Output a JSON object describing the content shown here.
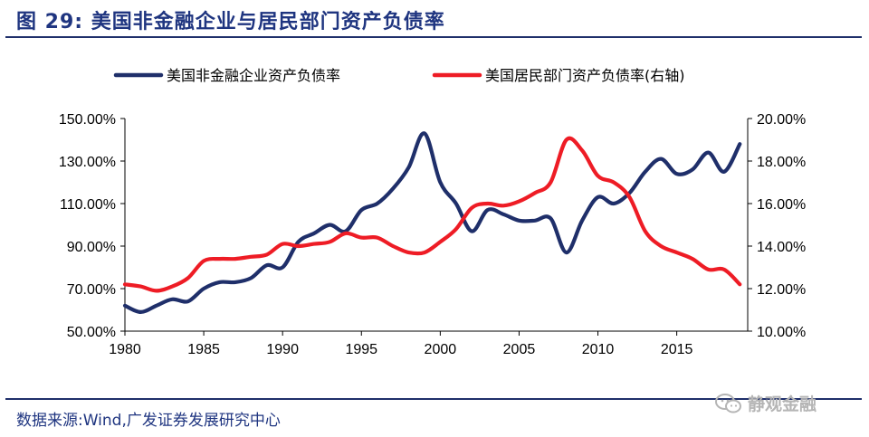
{
  "title": "图 29:  美国非金融企业与居民部门资产负债率",
  "source": "数据来源:Wind,广发证券发展研究中心",
  "watermark": {
    "text": "静观金融",
    "icon": "wechat-icon"
  },
  "colors": {
    "navy": "#1f2f6a",
    "red": "#ee1c25",
    "title": "#1f3580"
  },
  "chart_data": {
    "type": "line",
    "title": "美国非金融企业与居民部门资产负债率",
    "x_ticks": [
      "1980",
      "1985",
      "1990",
      "1995",
      "2000",
      "2005",
      "2010",
      "2015"
    ],
    "xlim": [
      1980,
      2019.5
    ],
    "y_left": {
      "ticks": [
        "150.00%",
        "130.00%",
        "110.00%",
        "90.00%",
        "70.00%",
        "50.00%"
      ],
      "range": [
        50,
        150
      ]
    },
    "y_right": {
      "ticks": [
        "20.00%",
        "18.00%",
        "16.00%",
        "14.00%",
        "12.00%",
        "10.00%"
      ],
      "range": [
        10,
        20
      ]
    },
    "legend_position": "top",
    "series": [
      {
        "name": "美国非金融企业资产负债率",
        "axis": "left",
        "color": "#1f2f6a",
        "x": [
          1980,
          1981,
          1982,
          1983,
          1984,
          1985,
          1986,
          1987,
          1988,
          1989,
          1990,
          1991,
          1992,
          1993,
          1994,
          1995,
          1996,
          1997,
          1998,
          1999,
          2000,
          2001,
          2002,
          2003,
          2004,
          2005,
          2006,
          2007,
          2008,
          2009,
          2010,
          2011,
          2012,
          2013,
          2014,
          2015,
          2016,
          2017,
          2018,
          2019
        ],
        "values": [
          62,
          59,
          62,
          65,
          64,
          70,
          73,
          73,
          75,
          81,
          80,
          92,
          96,
          100,
          97,
          107,
          110,
          117,
          127,
          143,
          120,
          110,
          97,
          107,
          105,
          102,
          102,
          103,
          87,
          102,
          113,
          110,
          115,
          125,
          131,
          124,
          126,
          134,
          125,
          138
        ]
      },
      {
        "name": "美国居民部门资产负债率(右轴)",
        "axis": "right",
        "color": "#ee1c25",
        "x": [
          1980,
          1981,
          1982,
          1983,
          1984,
          1985,
          1986,
          1987,
          1988,
          1989,
          1990,
          1991,
          1992,
          1993,
          1994,
          1995,
          1996,
          1997,
          1998,
          1999,
          2000,
          2001,
          2002,
          2003,
          2004,
          2005,
          2006,
          2007,
          2008,
          2009,
          2010,
          2011,
          2012,
          2013,
          2014,
          2015,
          2016,
          2017,
          2018,
          2019
        ],
        "values": [
          12.2,
          12.1,
          11.9,
          12.1,
          12.5,
          13.3,
          13.4,
          13.4,
          13.5,
          13.6,
          14.1,
          14.0,
          14.1,
          14.2,
          14.6,
          14.4,
          14.4,
          14.0,
          13.7,
          13.7,
          14.2,
          14.8,
          15.8,
          16.0,
          15.9,
          16.1,
          16.5,
          17.0,
          19.0,
          18.5,
          17.3,
          17.0,
          16.3,
          14.7,
          14.0,
          13.7,
          13.4,
          12.9,
          12.9,
          12.2
        ]
      }
    ]
  }
}
